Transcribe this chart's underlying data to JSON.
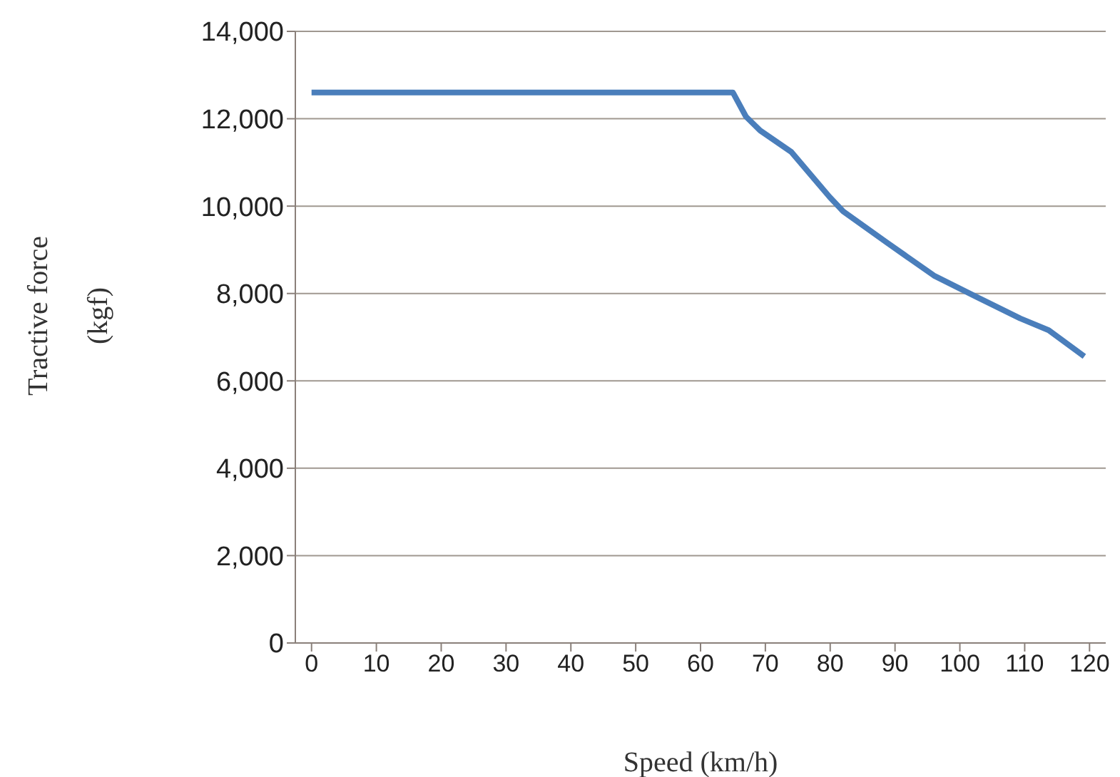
{
  "chart_data": {
    "type": "line",
    "xlabel": "Speed (km/h)",
    "ylabel": "Tractive force (kgf)",
    "series": [
      {
        "color": "#4a7ebb",
        "x": [
          0,
          65,
          67,
          69.2,
          74,
          79.9,
          82,
          88.7,
          96,
          102.6,
          109.3,
          113.7,
          119.2
        ],
        "values": [
          12600,
          12600,
          12050,
          11730,
          11240,
          10210,
          9880,
          9170,
          8410,
          7920,
          7430,
          7160,
          6560
        ]
      }
    ],
    "xlim": [
      -2.5,
      122.5
    ],
    "xticks": [
      0,
      10,
      20,
      30,
      40,
      50,
      60,
      70,
      80,
      90,
      100,
      110,
      120
    ],
    "ylim": [
      0,
      14000
    ],
    "yticks": [
      0,
      {
        "value": 2000,
        "label": "2,000"
      },
      {
        "value": 4000,
        "label": "4,000"
      },
      {
        "value": 6000,
        "label": "6,000"
      },
      {
        "value": 8000,
        "label": "8,000"
      },
      {
        "value": 10000,
        "label": "10,000"
      },
      {
        "value": 12000,
        "label": "12,000"
      },
      {
        "value": 14000,
        "label": "14,000"
      }
    ],
    "grid": "y",
    "legend": false,
    "marker": "none",
    "line_style": "solid"
  }
}
